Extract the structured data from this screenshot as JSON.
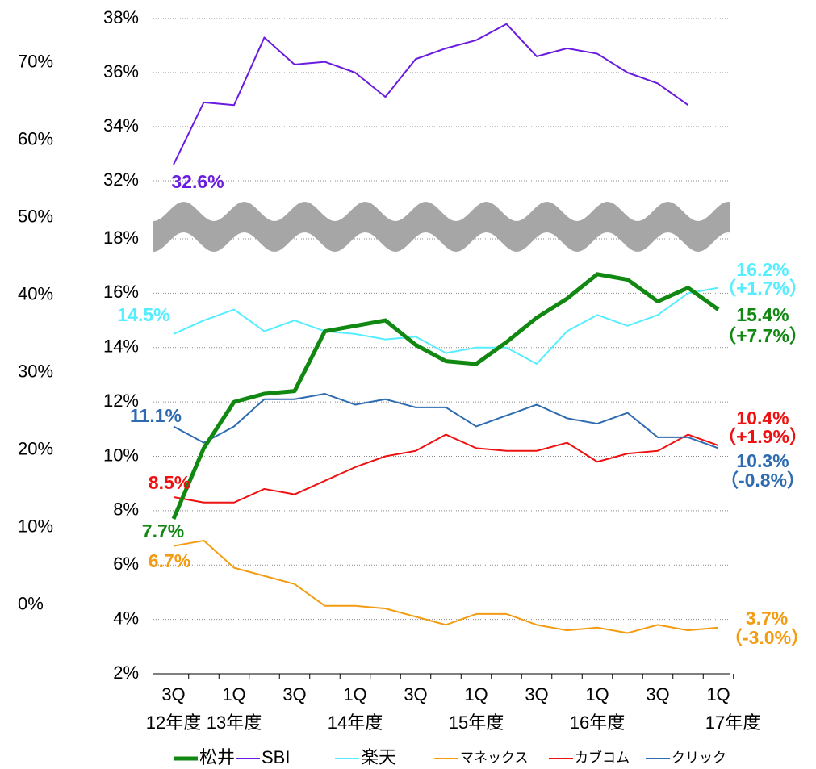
{
  "chart_data": {
    "type": "line",
    "categories": [
      "3Q",
      null,
      "1Q",
      null,
      "3Q",
      null,
      "1Q",
      null,
      "3Q",
      null,
      "1Q",
      null,
      "3Q",
      null,
      "1Q",
      null,
      "3Q",
      null,
      "1Q"
    ],
    "year_labels": [
      "12年度",
      null,
      "13年度",
      null,
      null,
      null,
      "14年度",
      null,
      null,
      null,
      "15年度",
      null,
      null,
      null,
      "16年度",
      null,
      null,
      null,
      "17年度"
    ],
    "ylim": [
      2,
      38
    ],
    "axis_break": [
      18,
      32
    ],
    "yticks": [
      {
        "value": 2,
        "label": "2%"
      },
      {
        "value": 4,
        "label": "4%"
      },
      {
        "value": 6,
        "label": "6%"
      },
      {
        "value": 8,
        "label": "8%"
      },
      {
        "value": 10,
        "label": "10%"
      },
      {
        "value": 12,
        "label": "12%"
      },
      {
        "value": 14,
        "label": "14%"
      },
      {
        "value": 16,
        "label": "16%"
      },
      {
        "value": 18,
        "label": "18%"
      },
      {
        "value": 32,
        "label": "32%"
      },
      {
        "value": 34,
        "label": "34%"
      },
      {
        "value": 36,
        "label": "36%"
      },
      {
        "value": 38,
        "label": "38%"
      }
    ],
    "y2lim": [
      -8.9,
      75.7
    ],
    "y2ticks": [
      {
        "value": 0,
        "label": "0%"
      },
      {
        "value": 10,
        "label": "10%"
      },
      {
        "value": 20,
        "label": "20%"
      },
      {
        "value": 30,
        "label": "30%"
      },
      {
        "value": 40,
        "label": "40%"
      },
      {
        "value": 50,
        "label": "50%"
      },
      {
        "value": 60,
        "label": "60%"
      },
      {
        "value": 70,
        "label": "70%"
      }
    ],
    "grid": true,
    "series": [
      {
        "name": "松井",
        "color": "#118811",
        "values": [
          7.7,
          10.3,
          12.0,
          12.3,
          12.4,
          14.6,
          14.8,
          15.0,
          14.1,
          13.5,
          13.4,
          14.2,
          15.1,
          15.8,
          16.7,
          16.5,
          15.7,
          16.2,
          15.4
        ],
        "value_labels": [
          "7.7%",
          null,
          null,
          null,
          null,
          null,
          null,
          null,
          null,
          null,
          null,
          null,
          null,
          null,
          null,
          null,
          null,
          null,
          "15.4%"
        ],
        "change_label": "（+7.7%）"
      },
      {
        "name": "SBI",
        "color": "#6a1be0",
        "values": [
          32.6,
          34.9,
          34.8,
          37.3,
          36.3,
          36.4,
          36.0,
          35.1,
          36.5,
          36.9,
          37.2,
          37.8,
          36.6,
          36.9,
          36.7,
          36.0,
          35.6,
          34.8,
          null
        ],
        "value_labels": [
          "32.6%",
          null,
          null,
          null,
          null,
          null,
          null,
          null,
          null,
          null,
          null,
          null,
          null,
          null,
          null,
          null,
          null,
          null,
          null
        ]
      },
      {
        "name": "楽天",
        "color": "#55eeff",
        "values": [
          14.5,
          15.0,
          15.4,
          14.6,
          15.0,
          14.6,
          14.5,
          14.3,
          14.4,
          13.8,
          14.0,
          14.0,
          13.4,
          14.6,
          15.2,
          14.8,
          15.2,
          16.0,
          16.2
        ],
        "value_labels": [
          "14.5%",
          null,
          null,
          null,
          null,
          null,
          null,
          null,
          null,
          null,
          null,
          null,
          null,
          null,
          null,
          null,
          null,
          null,
          "16.2%"
        ],
        "change_label": "（+1.7%）"
      },
      {
        "name": "マネックス",
        "color": "#f39c12",
        "values": [
          6.7,
          6.9,
          5.9,
          5.6,
          5.3,
          4.5,
          4.5,
          4.4,
          4.1,
          3.8,
          4.2,
          4.2,
          3.8,
          3.6,
          3.7,
          3.5,
          3.8,
          3.6,
          3.7
        ],
        "value_labels": [
          "6.7%",
          null,
          null,
          null,
          null,
          null,
          null,
          null,
          null,
          null,
          null,
          null,
          null,
          null,
          null,
          null,
          null,
          null,
          "3.7%"
        ],
        "change_label": "（-3.0%）"
      },
      {
        "name": "カブコム",
        "color": "#ee1111",
        "values": [
          8.5,
          8.3,
          8.3,
          8.8,
          8.6,
          9.1,
          9.6,
          10.0,
          10.2,
          10.8,
          10.3,
          10.2,
          10.2,
          10.5,
          9.8,
          10.1,
          10.2,
          10.8,
          10.4
        ],
        "value_labels": [
          "8.5%",
          null,
          null,
          null,
          null,
          null,
          null,
          null,
          null,
          null,
          null,
          null,
          null,
          null,
          null,
          null,
          null,
          null,
          "10.4%"
        ],
        "change_label": "（+1.9%）"
      },
      {
        "name": "クリック",
        "color": "#2e6bb0",
        "values": [
          11.1,
          10.5,
          11.1,
          12.1,
          12.1,
          12.3,
          11.9,
          12.1,
          11.8,
          11.8,
          11.1,
          11.5,
          11.9,
          11.4,
          11.2,
          11.6,
          10.7,
          10.7,
          10.3
        ],
        "value_labels": [
          "11.1%",
          null,
          null,
          null,
          null,
          null,
          null,
          null,
          null,
          null,
          null,
          null,
          null,
          null,
          null,
          null,
          null,
          null,
          "10.3%"
        ],
        "change_label": "（-0.8%）"
      }
    ]
  }
}
